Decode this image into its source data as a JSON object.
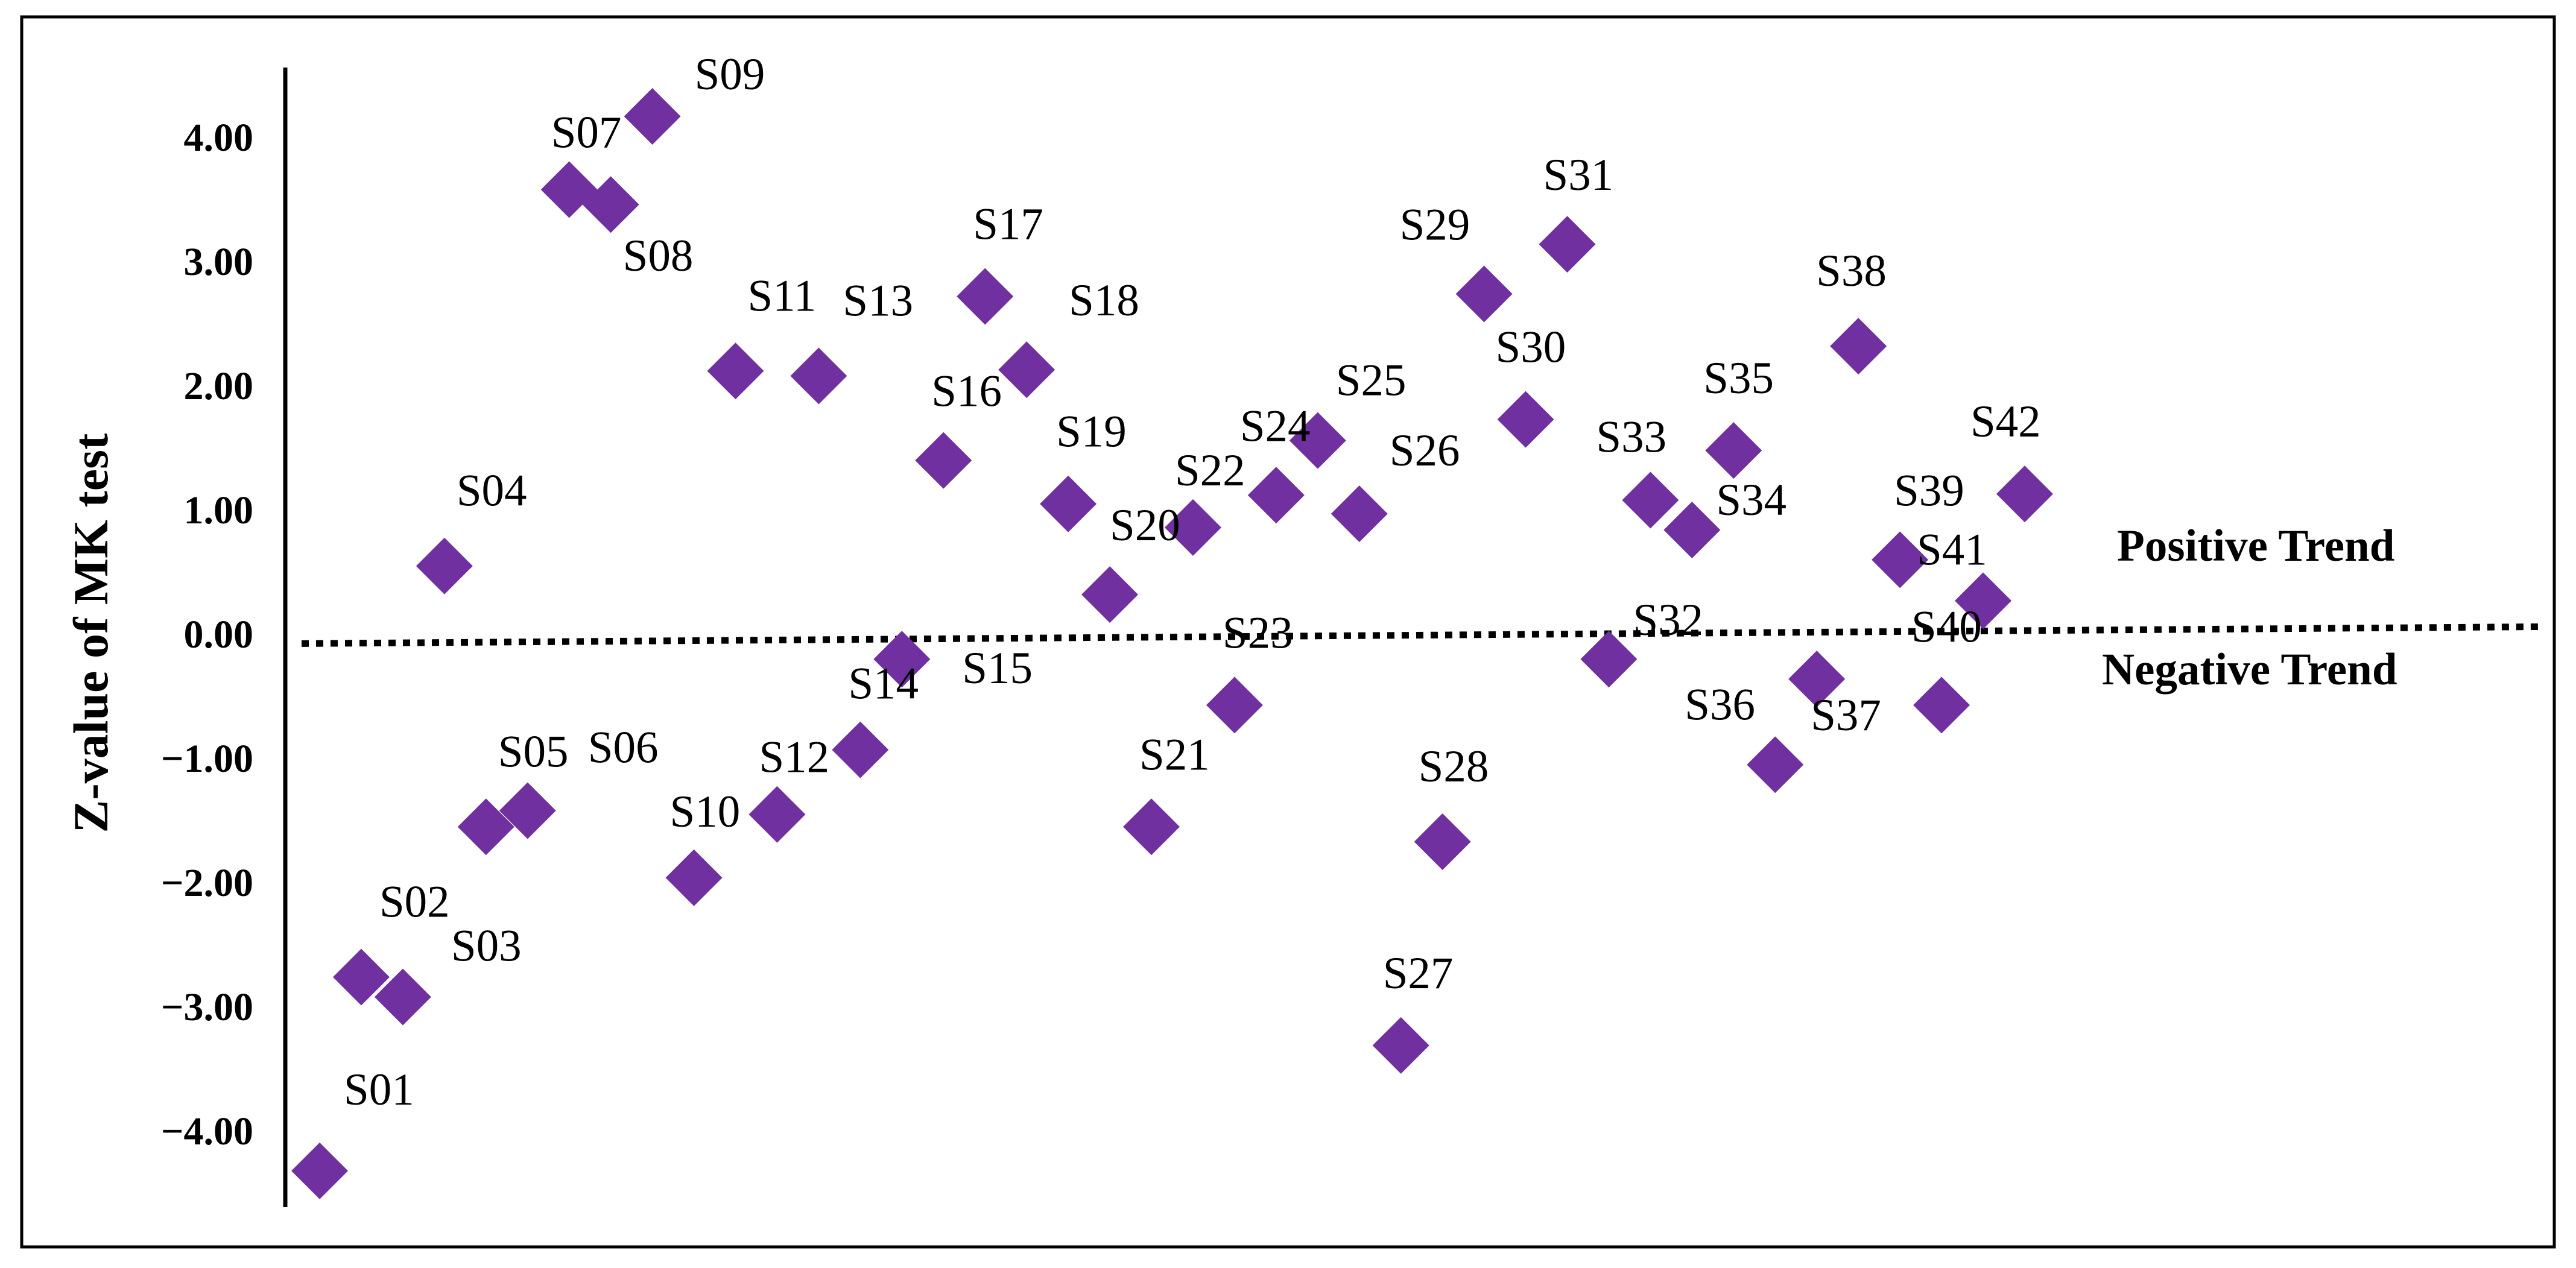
{
  "chart_data": {
    "type": "scatter",
    "ylabel": "Z-value of MK test",
    "ylim": [
      -4.4,
      4.7
    ],
    "yticks": [
      -4,
      -3,
      -2,
      -1,
      0,
      1,
      2,
      3,
      4
    ],
    "ytick_labels": [
      "−4.00",
      "−3.00",
      "−2.00",
      "−1.00",
      "0.00",
      "1.00",
      "2.00",
      "3.00",
      "4.00"
    ],
    "marker": "diamond",
    "marker_color": "#7030a0",
    "grid": false,
    "reference_line": {
      "y": 0.1,
      "style": "dotted"
    },
    "annotations": {
      "positive": "Positive Trend",
      "negative": "Negative Trend"
    },
    "points": [
      {
        "label": "S01",
        "x": 1,
        "y": -4.32
      },
      {
        "label": "S02",
        "x": 2,
        "y": -2.76
      },
      {
        "label": "S03",
        "x": 3,
        "y": -2.92
      },
      {
        "label": "S04",
        "x": 4,
        "y": 0.55
      },
      {
        "label": "S05",
        "x": 5,
        "y": -1.55
      },
      {
        "label": "S06",
        "x": 6,
        "y": -1.42
      },
      {
        "label": "S07",
        "x": 7,
        "y": 3.58
      },
      {
        "label": "S08",
        "x": 8,
        "y": 3.46
      },
      {
        "label": "S09",
        "x": 9,
        "y": 4.17
      },
      {
        "label": "S10",
        "x": 10,
        "y": -1.96
      },
      {
        "label": "S11",
        "x": 11,
        "y": 2.12
      },
      {
        "label": "S12",
        "x": 12,
        "y": -1.45
      },
      {
        "label": "S13",
        "x": 13,
        "y": 2.08
      },
      {
        "label": "S14",
        "x": 14,
        "y": -0.93
      },
      {
        "label": "S15",
        "x": 15,
        "y": -0.2
      },
      {
        "label": "S16",
        "x": 16,
        "y": 1.4
      },
      {
        "label": "S17",
        "x": 17,
        "y": 2.72
      },
      {
        "label": "S18",
        "x": 18,
        "y": 2.13
      },
      {
        "label": "S19",
        "x": 19,
        "y": 1.05
      },
      {
        "label": "S20",
        "x": 20,
        "y": 0.32
      },
      {
        "label": "S21",
        "x": 21,
        "y": -1.55
      },
      {
        "label": "S22",
        "x": 22,
        "y": 0.86
      },
      {
        "label": "S23",
        "x": 23,
        "y": -0.57
      },
      {
        "label": "S24",
        "x": 24,
        "y": 1.12
      },
      {
        "label": "S25",
        "x": 25,
        "y": 1.56
      },
      {
        "label": "S26",
        "x": 26,
        "y": 0.97
      },
      {
        "label": "S27",
        "x": 27,
        "y": -3.31
      },
      {
        "label": "S28",
        "x": 28,
        "y": -1.67
      },
      {
        "label": "S29",
        "x": 29,
        "y": 2.74
      },
      {
        "label": "S30",
        "x": 30,
        "y": 1.73
      },
      {
        "label": "S31",
        "x": 31,
        "y": 3.14
      },
      {
        "label": "S32",
        "x": 32,
        "y": -0.2
      },
      {
        "label": "S33",
        "x": 33,
        "y": 1.08
      },
      {
        "label": "S34",
        "x": 34,
        "y": 0.84
      },
      {
        "label": "S35",
        "x": 35,
        "y": 1.48
      },
      {
        "label": "S36",
        "x": 36,
        "y": -1.05
      },
      {
        "label": "S37",
        "x": 37,
        "y": -0.36
      },
      {
        "label": "S38",
        "x": 38,
        "y": 2.32
      },
      {
        "label": "S39",
        "x": 39,
        "y": 0.6
      },
      {
        "label": "S40",
        "x": 40,
        "y": -0.57
      },
      {
        "label": "S41",
        "x": 41,
        "y": 0.27
      },
      {
        "label": "S42",
        "x": 42,
        "y": 1.13
      }
    ]
  }
}
